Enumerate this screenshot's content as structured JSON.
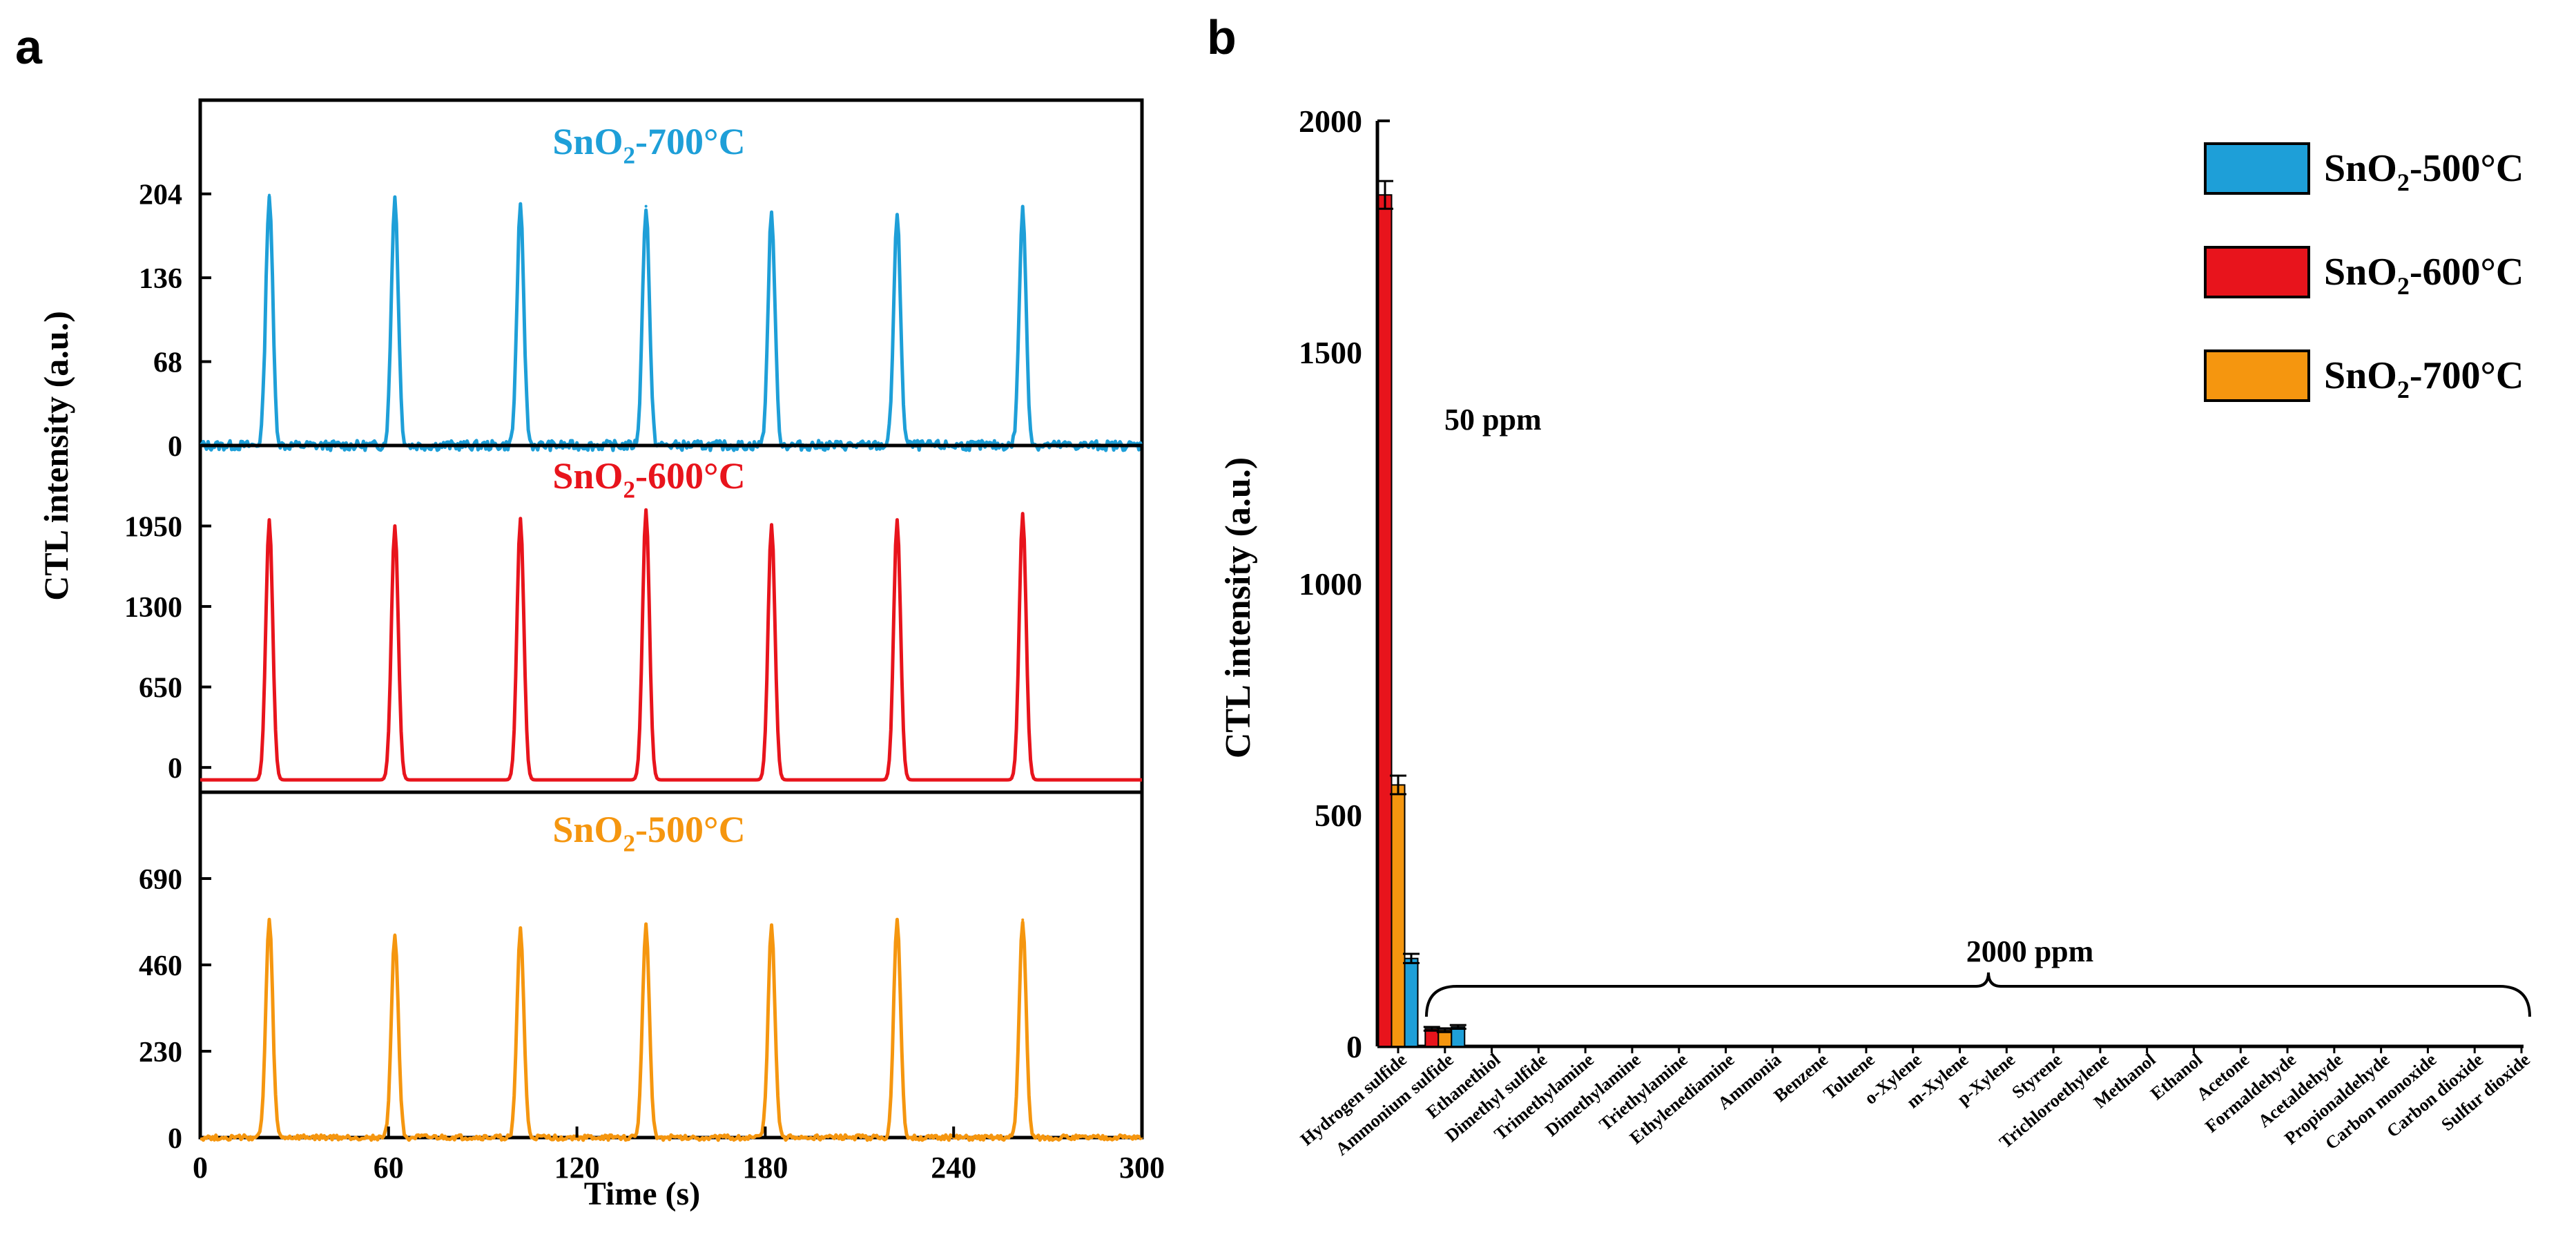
{
  "panel_a": {
    "label": "a",
    "chart_data": {
      "type": "line",
      "xlabel": "Time (s)",
      "ylabel": "CTL intensity (a.u.)",
      "xlim": [
        0,
        300
      ],
      "xticks": [
        "0",
        "60",
        "120",
        "180",
        "240",
        "300"
      ],
      "xtick_values": [
        0,
        60,
        120,
        180,
        240,
        300
      ],
      "peak_times": [
        22,
        62,
        102,
        142,
        182,
        222,
        262
      ],
      "subplots": [
        {
          "name": "SnO2-700°C",
          "title_prefix": "SnO",
          "title_sub": "2",
          "title_suffix": "-700°C",
          "color": "#1e9fd8",
          "ylim": [
            0,
            280
          ],
          "yticks": [
            "0",
            "68",
            "136",
            "204"
          ],
          "ytick_values": [
            0,
            68,
            136,
            204
          ],
          "peak_values": [
            203,
            201,
            192,
            194,
            188,
            185,
            191
          ],
          "noise": 4
        },
        {
          "name": "SnO2-600°C",
          "title_prefix": "SnO",
          "title_sub": "2",
          "title_suffix": "-600°C",
          "color": "#e8141c",
          "ylim": [
            -200,
            2600
          ],
          "yticks": [
            "0",
            "650",
            "1300",
            "1950"
          ],
          "ytick_values": [
            0,
            650,
            1300,
            1950
          ],
          "baseline": -100,
          "peak_values": [
            2000,
            1950,
            2010,
            2080,
            1960,
            2000,
            2050
          ],
          "noise": 0
        },
        {
          "name": "SnO2-500°C",
          "title_prefix": "SnO",
          "title_sub": "2",
          "title_suffix": "-500°C",
          "color": "#f5960f",
          "ylim": [
            0,
            920
          ],
          "yticks": [
            "0",
            "230",
            "460",
            "690"
          ],
          "ytick_values": [
            0,
            230,
            460,
            690
          ],
          "peak_values": [
            580,
            540,
            555,
            565,
            560,
            575,
            580
          ],
          "noise": 7
        }
      ]
    }
  },
  "panel_b": {
    "label": "b",
    "chart_data": {
      "type": "bar",
      "ylabel": "CTL intensity (a.u.)",
      "ylim": [
        0,
        2000
      ],
      "yticks": [
        "0",
        "500",
        "1000",
        "1500",
        "2000"
      ],
      "ytick_values": [
        0,
        500,
        1000,
        1500,
        2000
      ],
      "categories": [
        "Hydrogen sulfide",
        "Ammonium sulfide",
        "Ethanethiol",
        "Dimethyl sulfide",
        "Trimethylamine",
        "Dimethylamine",
        "Triethylamine",
        "Ethylenediamine",
        "Ammonia",
        "Benzene",
        "Toluene",
        "o-Xylene",
        "m-Xylene",
        "p-Xylene",
        "Styrene",
        "Trichloroethylene",
        "Methanol",
        "Ethanol",
        "Acetone",
        "Formaldehyde",
        "Acetaldehyde",
        "Propionaldehyde",
        "Carbon monoxide",
        "Carbon dioxide",
        "Sulfur dioxide"
      ],
      "series": [
        {
          "name": "SnO2-600°C",
          "color": "#e8141c",
          "values": [
            1840,
            38,
            0,
            0,
            0,
            0,
            0,
            0,
            0,
            0,
            0,
            0,
            0,
            0,
            0,
            0,
            0,
            0,
            0,
            0,
            0,
            0,
            0,
            0,
            0
          ],
          "errors": [
            30,
            4,
            0,
            0,
            0,
            0,
            0,
            0,
            0,
            0,
            0,
            0,
            0,
            0,
            0,
            0,
            0,
            0,
            0,
            0,
            0,
            0,
            0,
            0,
            0
          ]
        },
        {
          "name": "SnO2-700°C",
          "color": "#f5960f",
          "values": [
            565,
            35,
            0,
            0,
            0,
            0,
            0,
            0,
            0,
            0,
            0,
            0,
            0,
            0,
            0,
            0,
            0,
            0,
            0,
            0,
            0,
            0,
            0,
            0,
            0
          ],
          "errors": [
            20,
            4,
            0,
            0,
            0,
            0,
            0,
            0,
            0,
            0,
            0,
            0,
            0,
            0,
            0,
            0,
            0,
            0,
            0,
            0,
            0,
            0,
            0,
            0,
            0
          ]
        },
        {
          "name": "SnO2-500°C",
          "color": "#1e9fd8",
          "values": [
            190,
            42,
            0,
            0,
            0,
            0,
            0,
            0,
            0,
            0,
            0,
            0,
            0,
            0,
            0,
            0,
            0,
            0,
            0,
            0,
            0,
            0,
            0,
            0,
            0
          ],
          "errors": [
            10,
            4,
            0,
            0,
            0,
            0,
            0,
            0,
            0,
            0,
            0,
            0,
            0,
            0,
            0,
            0,
            0,
            0,
            0,
            0,
            0,
            0,
            0,
            0,
            0
          ]
        }
      ],
      "legend": [
        {
          "prefix": "SnO",
          "sub": "2",
          "suffix": "-500°C",
          "color": "#1e9fd8"
        },
        {
          "prefix": "SnO",
          "sub": "2",
          "suffix": "-600°C",
          "color": "#e8141c"
        },
        {
          "prefix": "SnO",
          "sub": "2",
          "suffix": "-700°C",
          "color": "#f5960f"
        }
      ],
      "annotations": [
        "50 ppm",
        "2000 ppm"
      ]
    }
  }
}
